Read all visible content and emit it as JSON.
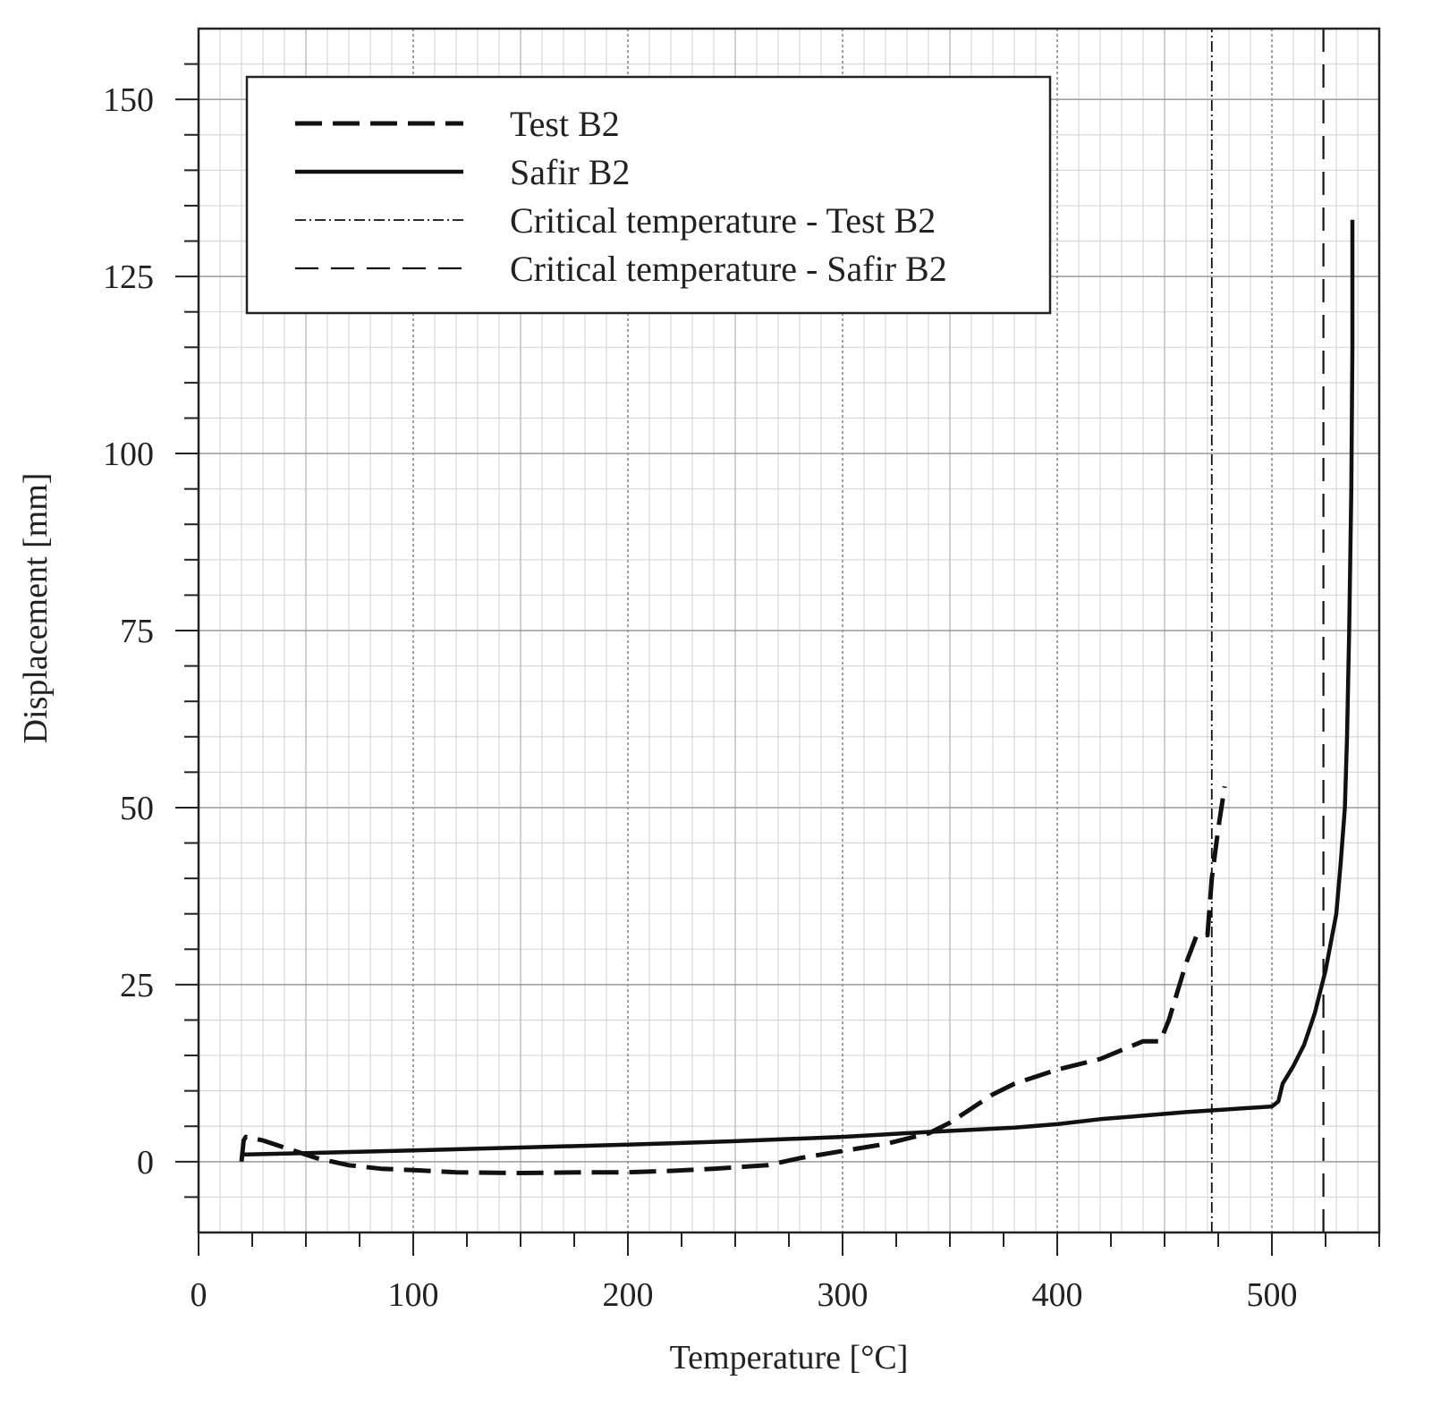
{
  "chart_data": {
    "type": "line",
    "title": "",
    "xlabel": "Temperature [°C]",
    "ylabel": "Displacement [mm]",
    "xlim": [
      0,
      550
    ],
    "ylim": [
      -10,
      160
    ],
    "x_ticks": [
      0,
      100,
      200,
      300,
      400,
      500
    ],
    "x_tick_labels": [
      "0",
      "100",
      "200",
      "300",
      "400",
      "500"
    ],
    "y_ticks": [
      0,
      25,
      50,
      75,
      100,
      125,
      150
    ],
    "y_tick_labels": [
      "0",
      "25",
      "50",
      "75",
      "100",
      "125",
      "150"
    ],
    "grid": true,
    "legend_position": "top-left",
    "series": [
      {
        "name": "Test B2",
        "style": "dashed-thick",
        "x": [
          20,
          21,
          22,
          30,
          40,
          55,
          70,
          85,
          100,
          120,
          150,
          180,
          200,
          220,
          240,
          265,
          280,
          300,
          320,
          340,
          350,
          360,
          370,
          380,
          400,
          420,
          440,
          448,
          452,
          460,
          465,
          470,
          472,
          475,
          478
        ],
        "y": [
          0,
          3,
          3.5,
          3,
          2,
          0.5,
          -0.5,
          -1,
          -1.2,
          -1.5,
          -1.6,
          -1.5,
          -1.5,
          -1.3,
          -1,
          -0.5,
          0.5,
          1.5,
          2.5,
          4,
          5.5,
          7.5,
          9.5,
          11,
          13,
          14.5,
          17,
          17,
          20,
          28,
          32,
          32,
          40,
          47,
          53
        ]
      },
      {
        "name": "Safir B2",
        "style": "solid-thick",
        "x": [
          20,
          50,
          100,
          150,
          200,
          250,
          300,
          340,
          380,
          400,
          420,
          440,
          460,
          480,
          500,
          503,
          505,
          510,
          515,
          520,
          525,
          530,
          532,
          534,
          535,
          536,
          537,
          537.5,
          537.5
        ],
        "y": [
          1,
          1.2,
          1.6,
          2,
          2.4,
          2.9,
          3.5,
          4.2,
          4.8,
          5.3,
          6,
          6.5,
          7,
          7.4,
          7.8,
          8.5,
          11,
          13.5,
          16.5,
          21,
          27,
          35,
          42,
          50,
          60,
          75,
          95,
          115,
          133
        ]
      },
      {
        "name": "Critical temperature - Test B2",
        "style": "dash-dot-thin",
        "x": [
          472,
          472
        ],
        "y": [
          -10,
          160
        ]
      },
      {
        "name": "Critical temperature - Safir B2",
        "style": "long-dash",
        "x": [
          524,
          524
        ],
        "y": [
          -10,
          160
        ]
      }
    ]
  }
}
